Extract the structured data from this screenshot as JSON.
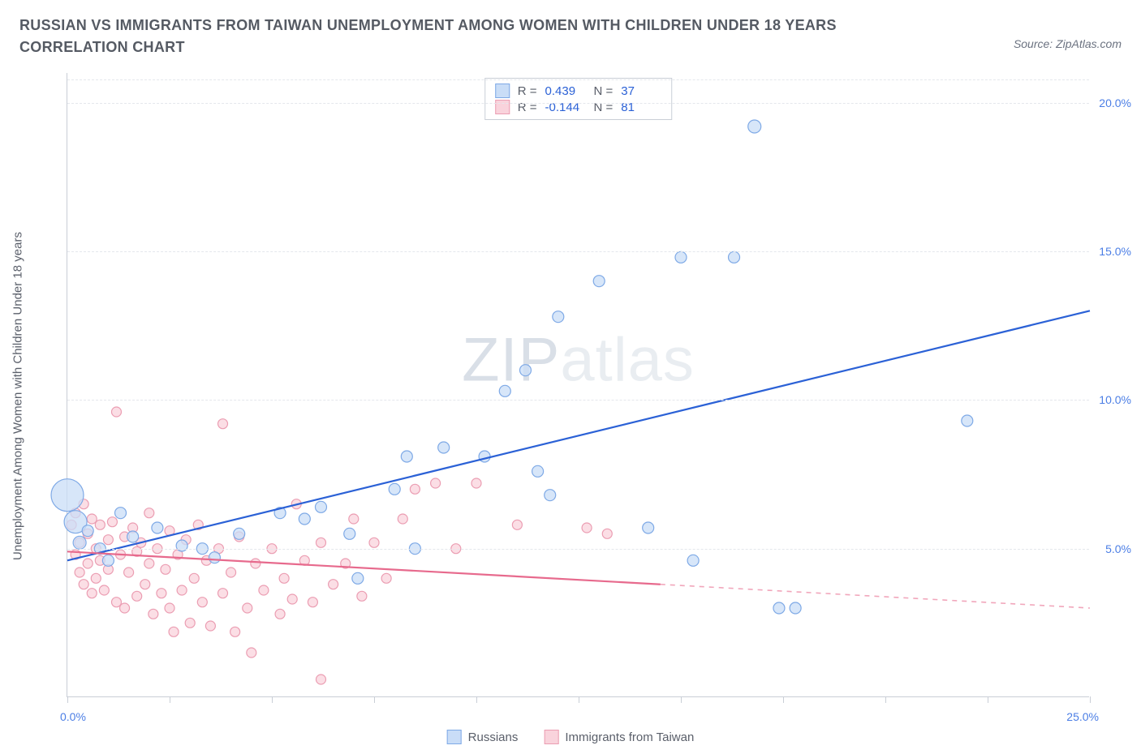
{
  "title": "RUSSIAN VS IMMIGRANTS FROM TAIWAN UNEMPLOYMENT AMONG WOMEN WITH CHILDREN UNDER 18 YEARS CORRELATION CHART",
  "source": "ZipAtlas.com",
  "source_prefix": "Source: ",
  "y_axis_label": "Unemployment Among Women with Children Under 18 years",
  "watermark_a": "ZIP",
  "watermark_b": "atlas",
  "chart": {
    "type": "scatter",
    "xlim": [
      0,
      25
    ],
    "ylim": [
      0,
      21
    ],
    "x_ticks": [
      0,
      2.5,
      5,
      7.5,
      10,
      12.5,
      15,
      17.5,
      20,
      22.5,
      25
    ],
    "x_tick_labels": {
      "left": "0.0%",
      "right": "25.0%"
    },
    "y_gridlines": [
      5,
      10,
      15,
      20
    ],
    "y_tick_labels": [
      "5.0%",
      "10.0%",
      "15.0%",
      "20.0%"
    ],
    "background_color": "#ffffff",
    "grid_color": "#e4e7ec",
    "axis_color": "#c9ced6",
    "series": [
      {
        "name": "Russians",
        "color_fill": "#c9ddf7",
        "color_stroke": "#7ea9e6",
        "line_color": "#2b61d6",
        "R": "0.439",
        "N": "37",
        "trend": {
          "x1": 0.0,
          "y1": 4.6,
          "x2": 25.0,
          "y2": 13.0,
          "dash_from_x": 25.0
        },
        "points": [
          {
            "x": 0.0,
            "y": 6.8,
            "r": 20
          },
          {
            "x": 0.2,
            "y": 5.9,
            "r": 14
          },
          {
            "x": 0.3,
            "y": 5.2,
            "r": 8
          },
          {
            "x": 0.5,
            "y": 5.6,
            "r": 7
          },
          {
            "x": 0.8,
            "y": 5.0,
            "r": 7
          },
          {
            "x": 1.0,
            "y": 4.6,
            "r": 7
          },
          {
            "x": 1.3,
            "y": 6.2,
            "r": 7
          },
          {
            "x": 1.6,
            "y": 5.4,
            "r": 7
          },
          {
            "x": 2.2,
            "y": 5.7,
            "r": 7
          },
          {
            "x": 2.8,
            "y": 5.1,
            "r": 7
          },
          {
            "x": 3.3,
            "y": 5.0,
            "r": 7
          },
          {
            "x": 3.6,
            "y": 4.7,
            "r": 7
          },
          {
            "x": 4.2,
            "y": 5.5,
            "r": 7
          },
          {
            "x": 5.2,
            "y": 6.2,
            "r": 7
          },
          {
            "x": 5.8,
            "y": 6.0,
            "r": 7
          },
          {
            "x": 6.2,
            "y": 6.4,
            "r": 7
          },
          {
            "x": 6.9,
            "y": 5.5,
            "r": 7
          },
          {
            "x": 7.1,
            "y": 4.0,
            "r": 7
          },
          {
            "x": 8.0,
            "y": 7.0,
            "r": 7
          },
          {
            "x": 8.3,
            "y": 8.1,
            "r": 7
          },
          {
            "x": 8.5,
            "y": 5.0,
            "r": 7
          },
          {
            "x": 9.2,
            "y": 8.4,
            "r": 7
          },
          {
            "x": 10.2,
            "y": 8.1,
            "r": 7
          },
          {
            "x": 10.7,
            "y": 10.3,
            "r": 7
          },
          {
            "x": 11.2,
            "y": 11.0,
            "r": 7
          },
          {
            "x": 11.5,
            "y": 7.6,
            "r": 7
          },
          {
            "x": 11.8,
            "y": 6.8,
            "r": 7
          },
          {
            "x": 12.0,
            "y": 12.8,
            "r": 7
          },
          {
            "x": 13.0,
            "y": 14.0,
            "r": 7
          },
          {
            "x": 14.2,
            "y": 5.7,
            "r": 7
          },
          {
            "x": 15.0,
            "y": 14.8,
            "r": 7
          },
          {
            "x": 15.3,
            "y": 4.6,
            "r": 7
          },
          {
            "x": 16.3,
            "y": 14.8,
            "r": 7
          },
          {
            "x": 16.8,
            "y": 19.2,
            "r": 8
          },
          {
            "x": 17.4,
            "y": 3.0,
            "r": 7
          },
          {
            "x": 17.8,
            "y": 3.0,
            "r": 7
          },
          {
            "x": 22.0,
            "y": 9.3,
            "r": 7
          }
        ]
      },
      {
        "name": "Immigrants from Taiwan",
        "color_fill": "#f9d3dc",
        "color_stroke": "#eb9db2",
        "line_color": "#e76a8d",
        "R": "-0.144",
        "N": "81",
        "trend": {
          "x1": 0.0,
          "y1": 4.9,
          "x2": 25.0,
          "y2": 3.0,
          "dash_from_x": 14.5
        },
        "points": [
          {
            "x": 0.1,
            "y": 5.8,
            "r": 6
          },
          {
            "x": 0.2,
            "y": 6.2,
            "r": 6
          },
          {
            "x": 0.2,
            "y": 4.8,
            "r": 6
          },
          {
            "x": 0.3,
            "y": 5.2,
            "r": 6
          },
          {
            "x": 0.3,
            "y": 4.2,
            "r": 6
          },
          {
            "x": 0.4,
            "y": 6.5,
            "r": 6
          },
          {
            "x": 0.4,
            "y": 3.8,
            "r": 6
          },
          {
            "x": 0.5,
            "y": 5.5,
            "r": 6
          },
          {
            "x": 0.5,
            "y": 4.5,
            "r": 6
          },
          {
            "x": 0.6,
            "y": 6.0,
            "r": 6
          },
          {
            "x": 0.6,
            "y": 3.5,
            "r": 6
          },
          {
            "x": 0.7,
            "y": 5.0,
            "r": 6
          },
          {
            "x": 0.7,
            "y": 4.0,
            "r": 6
          },
          {
            "x": 0.8,
            "y": 5.8,
            "r": 6
          },
          {
            "x": 0.8,
            "y": 4.6,
            "r": 6
          },
          {
            "x": 0.9,
            "y": 3.6,
            "r": 6
          },
          {
            "x": 1.0,
            "y": 5.3,
            "r": 6
          },
          {
            "x": 1.0,
            "y": 4.3,
            "r": 6
          },
          {
            "x": 1.1,
            "y": 5.9,
            "r": 6
          },
          {
            "x": 1.2,
            "y": 3.2,
            "r": 6
          },
          {
            "x": 1.2,
            "y": 9.6,
            "r": 6
          },
          {
            "x": 1.3,
            "y": 4.8,
            "r": 6
          },
          {
            "x": 1.4,
            "y": 5.4,
            "r": 6
          },
          {
            "x": 1.4,
            "y": 3.0,
            "r": 6
          },
          {
            "x": 1.5,
            "y": 4.2,
            "r": 6
          },
          {
            "x": 1.6,
            "y": 5.7,
            "r": 6
          },
          {
            "x": 1.7,
            "y": 3.4,
            "r": 6
          },
          {
            "x": 1.7,
            "y": 4.9,
            "r": 6
          },
          {
            "x": 1.8,
            "y": 5.2,
            "r": 6
          },
          {
            "x": 1.9,
            "y": 3.8,
            "r": 6
          },
          {
            "x": 2.0,
            "y": 6.2,
            "r": 6
          },
          {
            "x": 2.0,
            "y": 4.5,
            "r": 6
          },
          {
            "x": 2.1,
            "y": 2.8,
            "r": 6
          },
          {
            "x": 2.2,
            "y": 5.0,
            "r": 6
          },
          {
            "x": 2.3,
            "y": 3.5,
            "r": 6
          },
          {
            "x": 2.4,
            "y": 4.3,
            "r": 6
          },
          {
            "x": 2.5,
            "y": 5.6,
            "r": 6
          },
          {
            "x": 2.5,
            "y": 3.0,
            "r": 6
          },
          {
            "x": 2.6,
            "y": 2.2,
            "r": 6
          },
          {
            "x": 2.7,
            "y": 4.8,
            "r": 6
          },
          {
            "x": 2.8,
            "y": 3.6,
            "r": 6
          },
          {
            "x": 2.9,
            "y": 5.3,
            "r": 6
          },
          {
            "x": 3.0,
            "y": 2.5,
            "r": 6
          },
          {
            "x": 3.1,
            "y": 4.0,
            "r": 6
          },
          {
            "x": 3.2,
            "y": 5.8,
            "r": 6
          },
          {
            "x": 3.3,
            "y": 3.2,
            "r": 6
          },
          {
            "x": 3.4,
            "y": 4.6,
            "r": 6
          },
          {
            "x": 3.5,
            "y": 2.4,
            "r": 6
          },
          {
            "x": 3.7,
            "y": 5.0,
            "r": 6
          },
          {
            "x": 3.8,
            "y": 3.5,
            "r": 6
          },
          {
            "x": 3.8,
            "y": 9.2,
            "r": 6
          },
          {
            "x": 4.0,
            "y": 4.2,
            "r": 6
          },
          {
            "x": 4.1,
            "y": 2.2,
            "r": 6
          },
          {
            "x": 4.2,
            "y": 5.4,
            "r": 6
          },
          {
            "x": 4.4,
            "y": 3.0,
            "r": 6
          },
          {
            "x": 4.5,
            "y": 1.5,
            "r": 6
          },
          {
            "x": 4.6,
            "y": 4.5,
            "r": 6
          },
          {
            "x": 4.8,
            "y": 3.6,
            "r": 6
          },
          {
            "x": 5.0,
            "y": 5.0,
            "r": 6
          },
          {
            "x": 5.2,
            "y": 2.8,
            "r": 6
          },
          {
            "x": 5.3,
            "y": 4.0,
            "r": 6
          },
          {
            "x": 5.5,
            "y": 3.3,
            "r": 6
          },
          {
            "x": 5.6,
            "y": 6.5,
            "r": 6
          },
          {
            "x": 5.8,
            "y": 4.6,
            "r": 6
          },
          {
            "x": 6.0,
            "y": 3.2,
            "r": 6
          },
          {
            "x": 6.2,
            "y": 5.2,
            "r": 6
          },
          {
            "x": 6.2,
            "y": 0.6,
            "r": 6
          },
          {
            "x": 6.5,
            "y": 3.8,
            "r": 6
          },
          {
            "x": 6.8,
            "y": 4.5,
            "r": 6
          },
          {
            "x": 7.0,
            "y": 6.0,
            "r": 6
          },
          {
            "x": 7.2,
            "y": 3.4,
            "r": 6
          },
          {
            "x": 7.5,
            "y": 5.2,
            "r": 6
          },
          {
            "x": 7.8,
            "y": 4.0,
            "r": 6
          },
          {
            "x": 8.2,
            "y": 6.0,
            "r": 6
          },
          {
            "x": 8.5,
            "y": 7.0,
            "r": 6
          },
          {
            "x": 9.0,
            "y": 7.2,
            "r": 6
          },
          {
            "x": 9.5,
            "y": 5.0,
            "r": 6
          },
          {
            "x": 10.0,
            "y": 7.2,
            "r": 6
          },
          {
            "x": 11.0,
            "y": 5.8,
            "r": 6
          },
          {
            "x": 12.7,
            "y": 5.7,
            "r": 6
          },
          {
            "x": 13.2,
            "y": 5.5,
            "r": 6
          }
        ]
      }
    ]
  }
}
